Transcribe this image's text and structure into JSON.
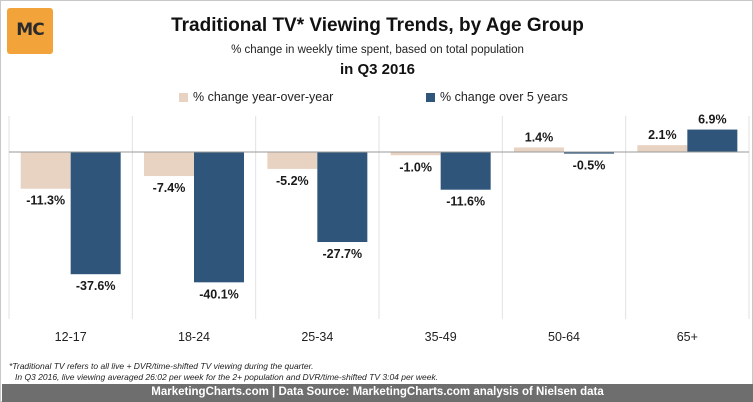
{
  "logo": {
    "text": "MC"
  },
  "chart_data": {
    "type": "bar",
    "title": "Traditional TV* Viewing Trends, by Age Group",
    "subtitle": "% change in weekly time spent, based on total population",
    "subtitle2": "in Q3 2016",
    "categories": [
      "12-17",
      "18-24",
      "25-34",
      "35-49",
      "50-64",
      "65+"
    ],
    "series": [
      {
        "name": "% change year-over-year",
        "color": "#e8d3c3",
        "values": [
          -11.3,
          -7.4,
          -5.2,
          -1.0,
          1.4,
          2.1
        ],
        "labels": [
          "-11.3%",
          "-7.4%",
          "-5.2%",
          "-1.0%",
          "1.4%",
          "2.1%"
        ]
      },
      {
        "name": "% change over 5 years",
        "color": "#2f557a",
        "values": [
          -37.6,
          -40.1,
          -27.7,
          -11.6,
          -0.5,
          6.9
        ],
        "labels": [
          "-37.6%",
          "-40.1%",
          "-27.7%",
          "-11.6%",
          "-0.5%",
          "6.9%"
        ]
      }
    ],
    "xlabel": "",
    "ylabel": "",
    "ylim": [
      -45,
      10
    ],
    "grid": "vertical separators between categories",
    "legend_position": "top-center"
  },
  "notes": {
    "line1": "*Traditional TV refers to all live + DVR/time-shifted TV viewing during the quarter.",
    "line2": "In Q3 2016, live viewing averaged 26:02 per week for the 2+ population and DVR/time-shifted TV 3:04 per week."
  },
  "footer": {
    "text": "MarketingCharts.com | Data Source: MarketingCharts.com analysis of Nielsen data"
  }
}
